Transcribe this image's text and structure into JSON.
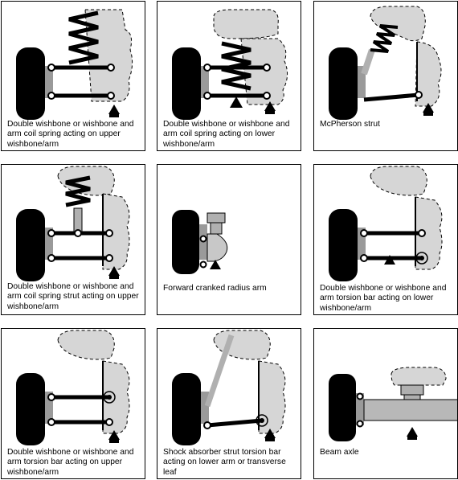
{
  "figure": {
    "panels": [
      {
        "caption": "Double wishbone or wishbone and arm coil spring acting on upper wishbone/arm"
      },
      {
        "caption": "Double wishbone or wishbone and arm coil spring acting on lower wishbone/arm"
      },
      {
        "caption": "McPherson strut"
      },
      {
        "caption": "Double wishbone or wishbone and arm coil spring strut acting on upper wishbone/arm"
      },
      {
        "caption": "Forward cranked radius arm"
      },
      {
        "caption": "Double wishbone or wishbone and arm torsion bar acting on lower wishbone/arm"
      },
      {
        "caption": "Double wishbone or wishbone and arm torsion bar acting on upper wishbone/arm"
      },
      {
        "caption": "Shock absorber strut torsion bar acting on lower arm or transverse leaf"
      },
      {
        "caption": "Beam axle"
      }
    ]
  },
  "colors": {
    "body": "#d6d6d6",
    "tyre": "#000000",
    "line": "#000000",
    "strut": "#b0b0b0"
  }
}
